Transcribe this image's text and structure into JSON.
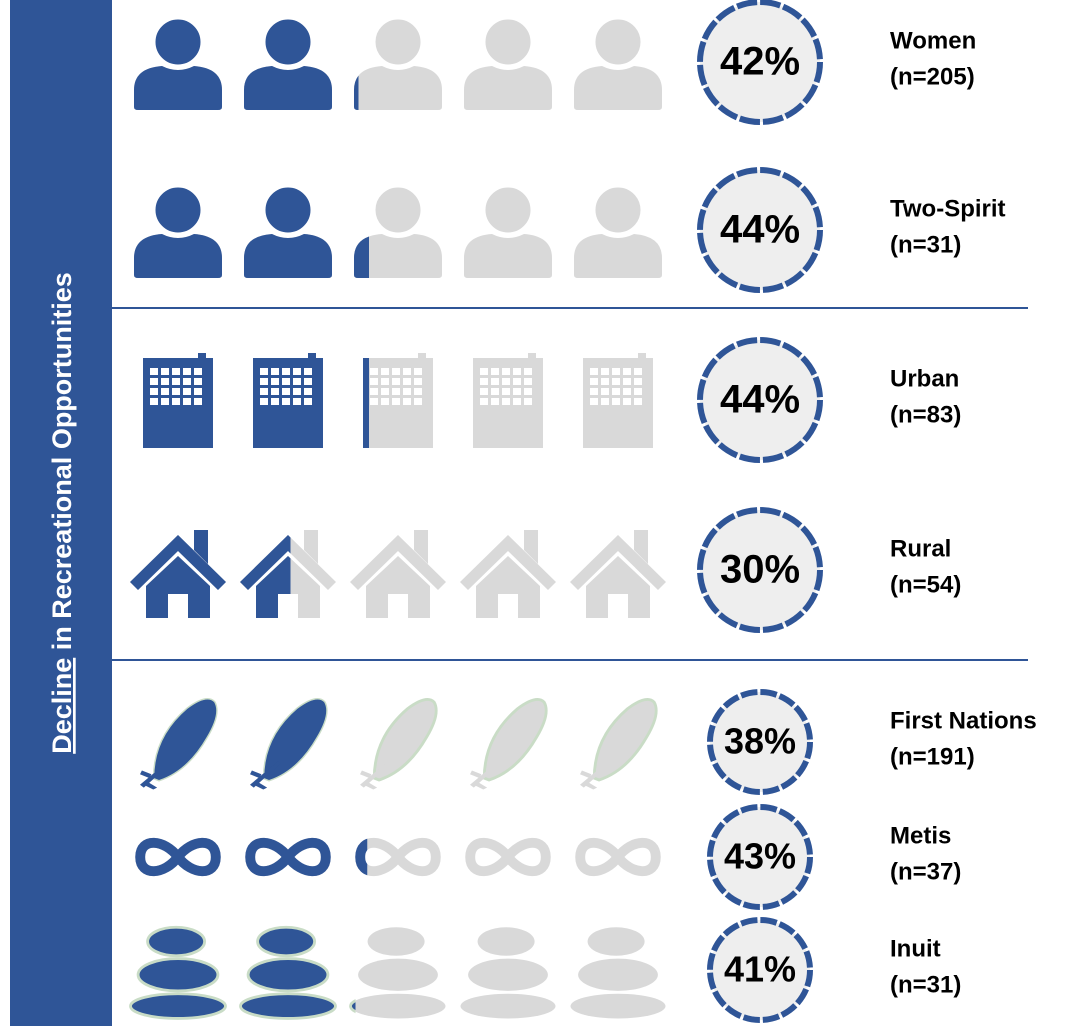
{
  "chart_data": {
    "type": "pictogram",
    "title": "Decline in Recreational Opportunities",
    "categories": [
      "Women",
      "Two-Spirit",
      "Urban",
      "Rural",
      "First Nations",
      "Metis",
      "Inuit"
    ],
    "sample_labels": [
      "(n=205)",
      "(n=31)",
      "(n=83)",
      "(n=54)",
      "(n=191)",
      "(n=37)",
      "(n=31)"
    ],
    "values": [
      42,
      44,
      44,
      30,
      38,
      43,
      41
    ],
    "value_labels": [
      "42%",
      "44%",
      "44%",
      "30%",
      "38%",
      "43%",
      "41%"
    ],
    "icon_count": 5,
    "color": "#2f5597",
    "empty_color": "#d9d9d9"
  }
}
